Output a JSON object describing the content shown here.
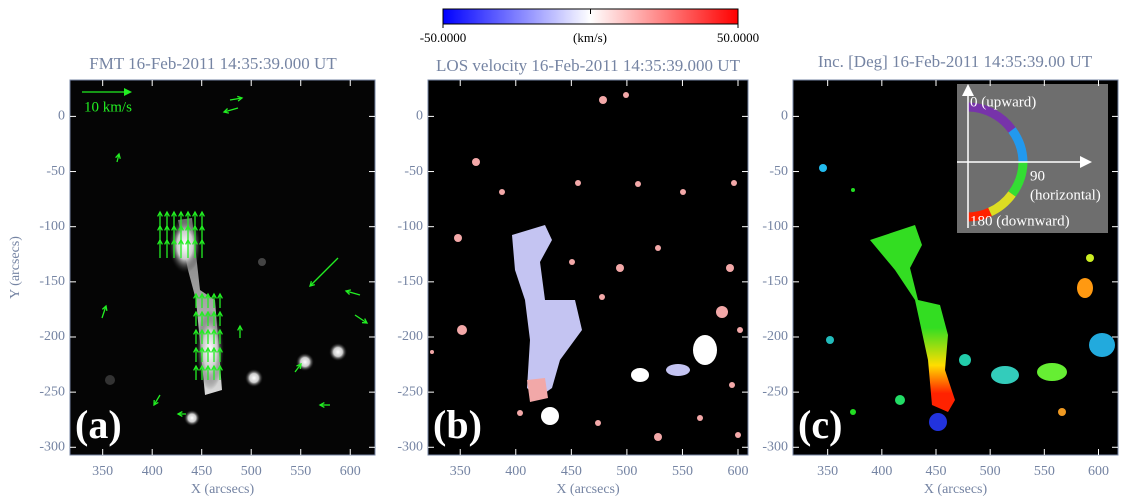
{
  "chart_data": [
    {
      "type": "image",
      "title": "FMT 16-Feb-2011 14:35:39.000 UT",
      "panel_label": "(a)",
      "xlabel": "X (arcsecs)",
      "ylabel": "Y (arcsecs)",
      "annotations": [
        "10 km/s"
      ],
      "xlim": [
        317,
        625
      ],
      "ylim": [
        -307,
        33
      ],
      "xticks": [
        350,
        400,
        450,
        500,
        550,
        600
      ],
      "yticks": [
        0,
        -50,
        -100,
        -150,
        -200,
        -250,
        -300
      ]
    },
    {
      "type": "image",
      "title": "LOS velocity 16-Feb-2011 14:35:39.000 UT",
      "panel_label": "(b)",
      "xlabel": "X (arcsecs)",
      "xlim": [
        321,
        609
      ],
      "ylim": [
        -307,
        33
      ],
      "xticks": [
        350,
        400,
        450,
        500,
        550,
        600
      ],
      "yticks": [
        0,
        -50,
        -100,
        -150,
        -200,
        -250,
        -300
      ],
      "colorbar": {
        "label": "(km/s)",
        "range": [
          -50,
          50
        ],
        "colors": [
          "#0000ff",
          "#ffffff",
          "#ff0000"
        ],
        "ticks": [
          {
            "value": -50,
            "label": "-50.0000"
          },
          {
            "value": 50,
            "label": "50.0000"
          }
        ]
      }
    },
    {
      "type": "image",
      "title": "Inc. [Deg] 16-Feb-2011 14:35:39.00 UT",
      "panel_label": "(c)",
      "xlabel": "X (arcsecs)",
      "annotations": [
        "0 (upward)",
        "90",
        "(horizontal)",
        "180 (downward)"
      ],
      "xlim": [
        318,
        618
      ],
      "ylim": [
        -307,
        33
      ],
      "xticks": [
        350,
        400,
        450,
        500,
        550,
        600
      ],
      "yticks": [
        0,
        -50,
        -100,
        -150,
        -200,
        -250,
        -300
      ]
    }
  ]
}
